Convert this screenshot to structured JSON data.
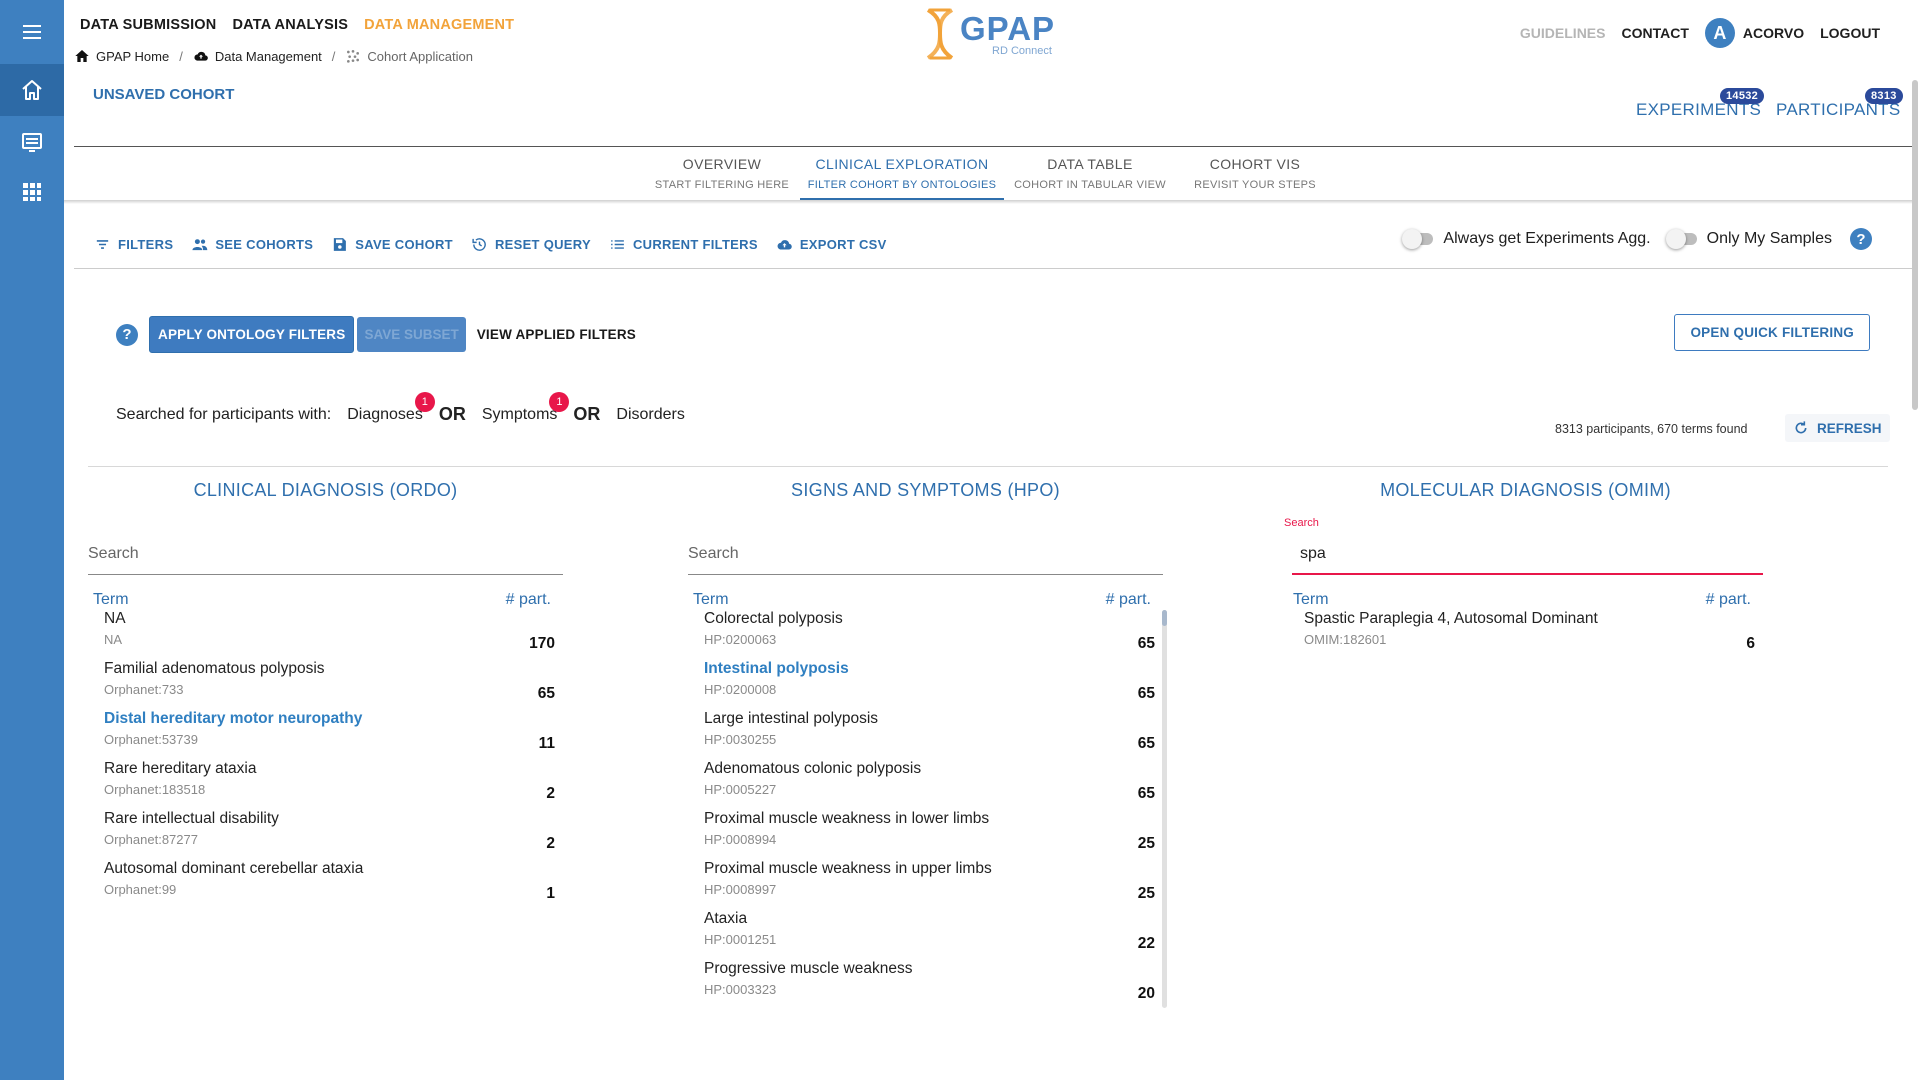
{
  "topnav": {
    "items": [
      "DATA SUBMISSION",
      "DATA ANALYSIS",
      "DATA MANAGEMENT"
    ]
  },
  "breadcrumb": {
    "home": "GPAP Home",
    "section": "Data Management",
    "current": "Cohort Application"
  },
  "logo": {
    "title": "GPAP",
    "subtitle": "RD Connect"
  },
  "header_right": {
    "guidelines": "GUIDELINES",
    "contact": "CONTACT",
    "avatar_letter": "A",
    "user": "ACORVO",
    "logout": "LOGOUT"
  },
  "cohort": {
    "title": "UNSAVED COHORT"
  },
  "counters": {
    "experiments_label": "EXPERIMENTS",
    "experiments_count": "14532",
    "participants_label": "PARTICIPANTS",
    "participants_count": "8313"
  },
  "tabs": [
    {
      "title": "OVERVIEW",
      "subtitle": "START FILTERING HERE"
    },
    {
      "title": "CLINICAL EXPLORATION",
      "subtitle": "FILTER COHORT BY ONTOLOGIES"
    },
    {
      "title": "DATA TABLE",
      "subtitle": "COHORT IN TABULAR VIEW"
    },
    {
      "title": "COHORT VIS",
      "subtitle": "REVISIT YOUR STEPS"
    }
  ],
  "toolbar": {
    "filters": "FILTERS",
    "see_cohorts": "SEE COHORTS",
    "save_cohort": "SAVE COHORT",
    "reset_query": "RESET QUERY",
    "current_filters": "CURRENT FILTERS",
    "export_csv": "EXPORT CSV"
  },
  "toggles": {
    "experiments_agg": "Always get Experiments Agg.",
    "only_my_samples": "Only My Samples"
  },
  "actions": {
    "help": "?",
    "apply": "APPLY ONTOLOGY FILTERS",
    "save_subset": "SAVE SUBSET",
    "view_applied": "VIEW APPLIED FILTERS",
    "open_quick": "OPEN QUICK FILTERING"
  },
  "search_summary": {
    "prefix": "Searched for participants with:",
    "diagnoses": "Diagnoses",
    "diagnoses_badge": "1",
    "or1": "OR",
    "symptoms": "Symptoms",
    "symptoms_badge": "1",
    "or2": "OR",
    "disorders": "Disorders"
  },
  "results": {
    "found_text": "8313 participants, 670 terms found",
    "refresh": "REFRESH"
  },
  "columns": {
    "ordo": {
      "title": "CLINICAL DIAGNOSIS (ORDO)",
      "search_placeholder": "Search",
      "term_header": "Term",
      "count_header": "# part.",
      "rows": [
        {
          "term": "NA",
          "code": "NA",
          "count": "170",
          "highlight": false
        },
        {
          "term": "Familial adenomatous polyposis",
          "code": "Orphanet:733",
          "count": "65",
          "highlight": false
        },
        {
          "term": "Distal hereditary motor neuropathy",
          "code": "Orphanet:53739",
          "count": "11",
          "highlight": true
        },
        {
          "term": "Rare hereditary ataxia",
          "code": "Orphanet:183518",
          "count": "2",
          "highlight": false
        },
        {
          "term": "Rare intellectual disability",
          "code": "Orphanet:87277",
          "count": "2",
          "highlight": false
        },
        {
          "term": "Autosomal dominant cerebellar ataxia",
          "code": "Orphanet:99",
          "count": "1",
          "highlight": false
        }
      ]
    },
    "hpo": {
      "title": "SIGNS AND SYMPTOMS (HPO)",
      "search_placeholder": "Search",
      "term_header": "Term",
      "count_header": "# part.",
      "rows": [
        {
          "term": "Colorectal polyposis",
          "code": "HP:0200063",
          "count": "65",
          "highlight": false
        },
        {
          "term": "Intestinal polyposis",
          "code": "HP:0200008",
          "count": "65",
          "highlight": true
        },
        {
          "term": "Large intestinal polyposis",
          "code": "HP:0030255",
          "count": "65",
          "highlight": false
        },
        {
          "term": "Adenomatous colonic polyposis",
          "code": "HP:0005227",
          "count": "65",
          "highlight": false
        },
        {
          "term": "Proximal muscle weakness in lower limbs",
          "code": "HP:0008994",
          "count": "25",
          "highlight": false
        },
        {
          "term": "Proximal muscle weakness in upper limbs",
          "code": "HP:0008997",
          "count": "25",
          "highlight": false
        },
        {
          "term": "Ataxia",
          "code": "HP:0001251",
          "count": "22",
          "highlight": false
        },
        {
          "term": "Progressive muscle weakness",
          "code": "HP:0003323",
          "count": "20",
          "highlight": false
        }
      ]
    },
    "omim": {
      "title": "MOLECULAR DIAGNOSIS (OMIM)",
      "search_label": "Search",
      "search_value": "spa",
      "term_header": "Term",
      "count_header": "# part.",
      "rows": [
        {
          "term": "Spastic Paraplegia 4, Autosomal Dominant",
          "code": "OMIM:182601",
          "count": "6",
          "highlight": false
        }
      ]
    }
  },
  "colors": {
    "rail": "#3e80c0",
    "primary": "#2f6fad",
    "accent_orange": "#f2a33a",
    "badge_red": "#e8174a",
    "badge_navy": "#2b4a9b"
  },
  "icons": [
    "menu-icon",
    "home-icon",
    "list-icon",
    "apps-icon",
    "filter-icon",
    "group-icon",
    "save-icon",
    "history-icon",
    "list-bullets-icon",
    "cloud-upload-icon",
    "refresh-icon",
    "help-icon"
  ]
}
